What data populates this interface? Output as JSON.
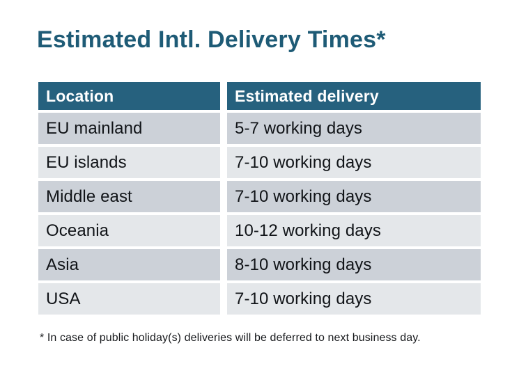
{
  "page": {
    "title": "Estimated Intl. Delivery Times*",
    "footnote": "* In case of public holiday(s) deliveries will be deferred to next business day."
  },
  "table": {
    "columns": [
      "Location",
      "Estimated delivery"
    ],
    "rows": [
      {
        "location": "EU mainland",
        "delivery": "5-7 working days"
      },
      {
        "location": "EU islands",
        "delivery": "7-10 working days"
      },
      {
        "location": "Middle east",
        "delivery": "7-10 working days"
      },
      {
        "location": "Oceania",
        "delivery": "10-12 working days"
      },
      {
        "location": "Asia",
        "delivery": "8-10 working days"
      },
      {
        "location": "USA",
        "delivery": "7-10 working days"
      }
    ]
  },
  "colors": {
    "title_teal": "#1e5b76",
    "header_teal": "#26617e",
    "row_dark": "#ccd1d8",
    "row_light": "#e4e7ea",
    "body_text": "#111418",
    "background": "#ffffff"
  }
}
